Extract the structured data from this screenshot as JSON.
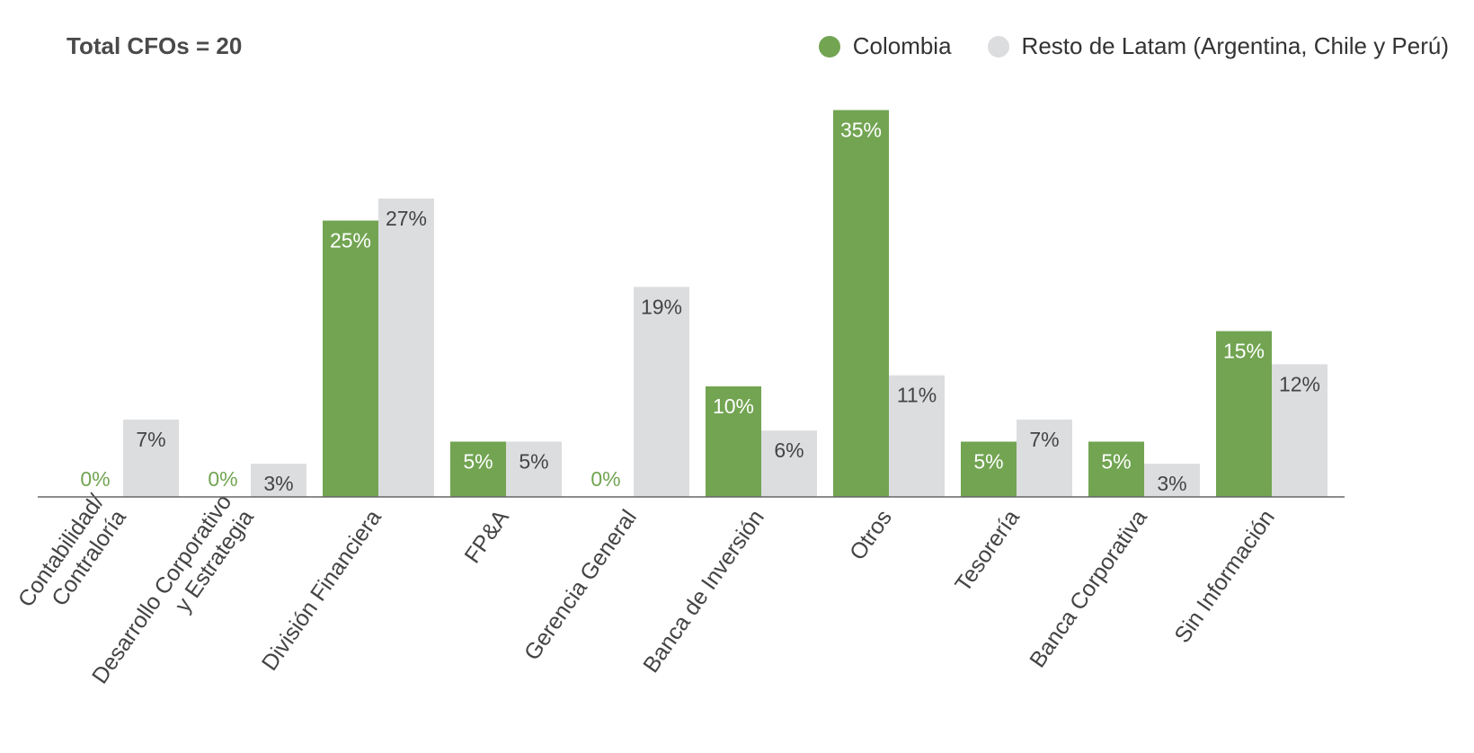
{
  "chart_data": {
    "type": "bar",
    "title": "Total CFOs = 20",
    "xlabel": "",
    "ylabel": "",
    "ylim": [
      0,
      35
    ],
    "grid": false,
    "legend_position": "top-right",
    "categories": [
      [
        "Contabilidad/",
        "Contraloría"
      ],
      [
        "Desarrollo Corporativo",
        "y Estrategia"
      ],
      [
        "División Financiera"
      ],
      [
        "FP&A"
      ],
      [
        "Gerencia General"
      ],
      [
        "Banca de Inversión"
      ],
      [
        "Otros"
      ],
      [
        "Tesorería"
      ],
      [
        "Banca Corporativa"
      ],
      [
        "Sin Información"
      ]
    ],
    "series": [
      {
        "name": "Colombia",
        "color": "#72a452",
        "values": [
          0,
          0,
          25,
          5,
          0,
          10,
          35,
          5,
          5,
          15
        ],
        "labels": [
          "0%",
          "0%",
          "25%",
          "5%",
          "0%",
          "10%",
          "35%",
          "5%",
          "5%",
          "15%"
        ]
      },
      {
        "name": "Resto de Latam (Argentina, Chile y Perú)",
        "color": "#dcdddf",
        "values": [
          7,
          3,
          27,
          5,
          19,
          6,
          11,
          7,
          3,
          12
        ],
        "labels": [
          "7%",
          "3%",
          "27%",
          "5%",
          "19%",
          "6%",
          "11%",
          "7%",
          "3%",
          "12%"
        ]
      }
    ]
  },
  "colors": {
    "axis": "#666666",
    "label_on_green": "#ffffff",
    "label_on_gray": "#444444",
    "label_zero": "#72a452",
    "category_text": "#444444"
  }
}
